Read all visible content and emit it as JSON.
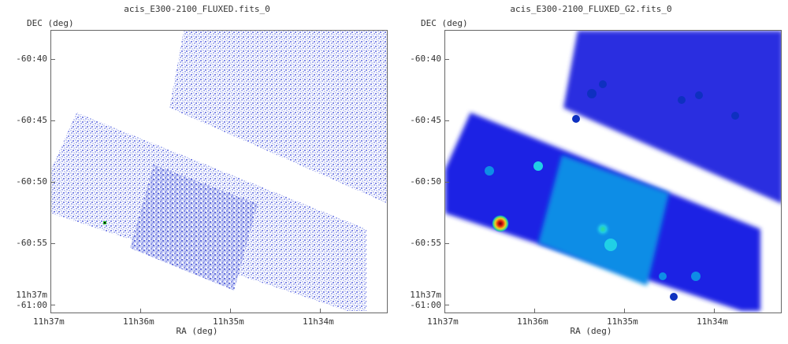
{
  "panels": [
    {
      "title": "acis_E300-2100_FLUXED.fits_0",
      "ylabel": "DEC (deg)",
      "xlabel": "RA (deg)",
      "yticks": [
        "-60:40",
        "-60:45",
        "-60:50",
        "-60:55",
        "11h37m",
        "-61:00"
      ],
      "xticks": [
        "11h37m",
        "11h36m",
        "11h35m",
        "11h34m"
      ]
    },
    {
      "title": "acis_E300-2100_FLUXED_G2.fits_0",
      "ylabel": "DEC (deg)",
      "xlabel": "RA (deg)",
      "yticks": [
        "-60:40",
        "-60:45",
        "-60:50",
        "-60:55",
        "11h37m",
        "-61:00"
      ],
      "xticks": [
        "11h37m",
        "11h36m",
        "11h35m",
        "11h34m"
      ]
    }
  ],
  "colors": {
    "raw_sparse": "#c9cff5",
    "raw_mid": "#7f88e6",
    "raw_dense": "#3840c8",
    "smooth_low": "#2024e6",
    "smooth_mid": "#0e8de6",
    "smooth_high": "#20d0e6",
    "hot": "#e02010"
  }
}
